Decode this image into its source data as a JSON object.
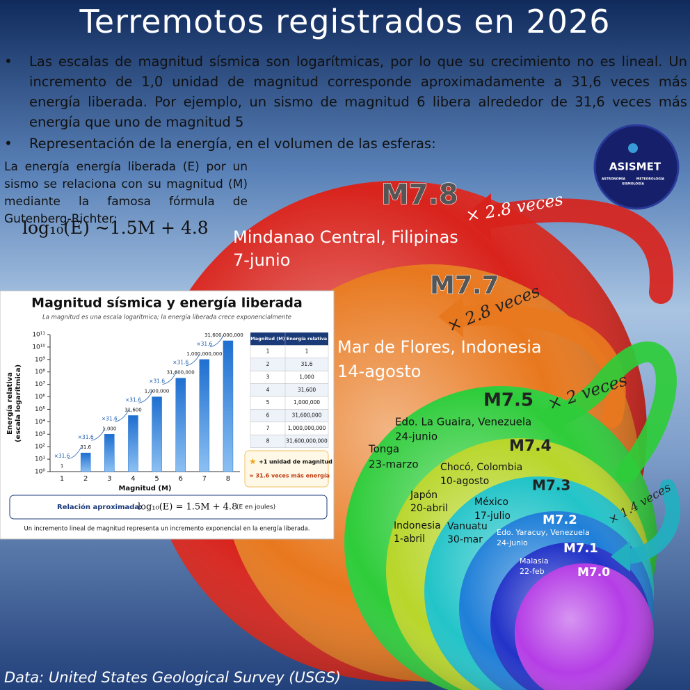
{
  "title": "Terremotos registrados en 2026",
  "bullets": [
    "Las escalas de magnitud sísmica son logarítmicas, por lo que su crecimiento no es lineal. Un incremento de 1,0 unidad de magnitud corresponde aproximadamente a 31,6 veces más energía liberada. Por ejemplo, un sismo de magnitud 6 libera alrededor de 31,6 veces más energía que uno de magnitud 5",
    "Representación de la energía, en el volumen de las esferas:"
  ],
  "intro": "La energía energía liberada (E) por un sismo se relaciona con su magnitud (M) mediante la famosa fórmula de Gutenberg-Richter:",
  "formula": "log₁₀(E) ~1.5M + 4.8",
  "logo": {
    "name": "ASISMET",
    "tags": [
      "ASTRONOMÍA",
      "METEOROLOGÍA",
      "SISMOLOGÍA"
    ]
  },
  "spheres": [
    {
      "magnitude": "M7.8",
      "color": "#d8231c",
      "events": [
        {
          "place": "Mindanao Central, Filipinas",
          "date": "7-junio"
        }
      ]
    },
    {
      "magnitude": "M7.7",
      "color": "#e8781e",
      "events": [
        {
          "place": "Mar de Flores, Indonesia",
          "date": "14-agosto"
        }
      ]
    },
    {
      "magnitude": "M7.5",
      "color": "#2ecc3a",
      "events": [
        {
          "place": "Edo. La Guaira, Venezuela",
          "date": "24-junio"
        },
        {
          "place": "Tonga",
          "date": "23-marzo"
        }
      ]
    },
    {
      "magnitude": "M7.4",
      "color": "#b8d62a",
      "events": [
        {
          "place": "Chocó, Colombia",
          "date": "10-agosto"
        },
        {
          "place": "Japón",
          "date": "20-abril"
        },
        {
          "place": "Indonesia",
          "date": "1-abril"
        }
      ]
    },
    {
      "magnitude": "M7.3",
      "color": "#22c4c8",
      "events": [
        {
          "place": "México",
          "date": "17-julio"
        },
        {
          "place": "Vanuatu",
          "date": "30-mar"
        }
      ]
    },
    {
      "magnitude": "M7.2",
      "color": "#1f7fd8",
      "events": [
        {
          "place": "Edo. Yaracuy, Venezuela",
          "date": "24-junio"
        }
      ]
    },
    {
      "magnitude": "M7.1",
      "color": "#2233c8",
      "events": [
        {
          "place": "Malasia",
          "date": "22-feb"
        }
      ]
    },
    {
      "magnitude": "M7.0",
      "color": "#b53ee6",
      "events": []
    }
  ],
  "arrows": [
    {
      "label": "× 2.8 veces",
      "color": "#d8231c"
    },
    {
      "label": "× 2.8 veces",
      "color": "#e8781e"
    },
    {
      "label": "× 2 veces",
      "color": "#2ecc3a"
    },
    {
      "label": "× 1.4 veces",
      "color": "#22b0c0"
    }
  ],
  "source": "Data: United States Geological Survey (USGS)",
  "chart_data": {
    "type": "bar",
    "title": "Magnitud sísmica y energía liberada",
    "subtitle": "La magnitud es una escala logarítmica; la energía liberada crece exponencialmente",
    "x_label": "Magnitud (M)",
    "y_label": [
      "Energía relativa",
      "(escala logarítmica)"
    ],
    "categories": [
      "1",
      "2",
      "3",
      "4",
      "5",
      "6",
      "7",
      "8"
    ],
    "values": [
      1,
      31.6,
      1000,
      31600,
      1000000,
      31600000,
      1000000000,
      31600000000
    ],
    "value_labels": [
      "1",
      "31.6",
      "1,000",
      "31,600",
      "1,000,000",
      "31,600,000",
      "1,000,000,000",
      "31,600,000,000"
    ],
    "annotations": [
      "×31.6",
      "×31.6",
      "×31.6",
      "×31.6",
      "×31.6",
      "×31.6",
      "×31.6"
    ],
    "color": "#1e6fd0",
    "log_y": true,
    "grid": false,
    "ylim": [
      1,
      100000000000
    ],
    "yticks": [
      {
        "value": 1,
        "label": "10⁰"
      },
      {
        "value": 10,
        "label": "10¹"
      },
      {
        "value": 100,
        "label": "10²"
      },
      {
        "value": 1000,
        "label": "10³"
      },
      {
        "value": 10000,
        "label": "10⁴"
      },
      {
        "value": 100000,
        "label": "10⁵"
      },
      {
        "value": 1000000,
        "label": "10⁶"
      },
      {
        "value": 10000000,
        "label": "10⁷"
      },
      {
        "value": 100000000,
        "label": "10⁸"
      },
      {
        "value": 1000000000,
        "label": "10⁹"
      },
      {
        "value": 10000000000,
        "label": "10¹⁰"
      },
      {
        "value": 100000000000,
        "label": "10¹¹"
      }
    ]
  },
  "inset_table": {
    "headers": [
      "Magnitud (M)",
      "Energía relativa"
    ],
    "rows": [
      [
        "1",
        "1"
      ],
      [
        "2",
        "31.6"
      ],
      [
        "3",
        "1,000"
      ],
      [
        "4",
        "31,600"
      ],
      [
        "5",
        "1,000,000"
      ],
      [
        "6",
        "31,600,000"
      ],
      [
        "7",
        "1,000,000,000"
      ],
      [
        "8",
        "31,600,000,000"
      ]
    ]
  },
  "inset_legend": [
    "+1 unidad de magnitud",
    "≈ 31.6 veces más energía"
  ],
  "inset_relation": {
    "label": "Relación aproximada:",
    "formula": "log₁₀(E) = 1.5M + 4.8",
    "unit": "(E en joules)"
  },
  "inset_note": "Un incremento lineal de magnitud representa un incremento exponencial en la energía liberada."
}
